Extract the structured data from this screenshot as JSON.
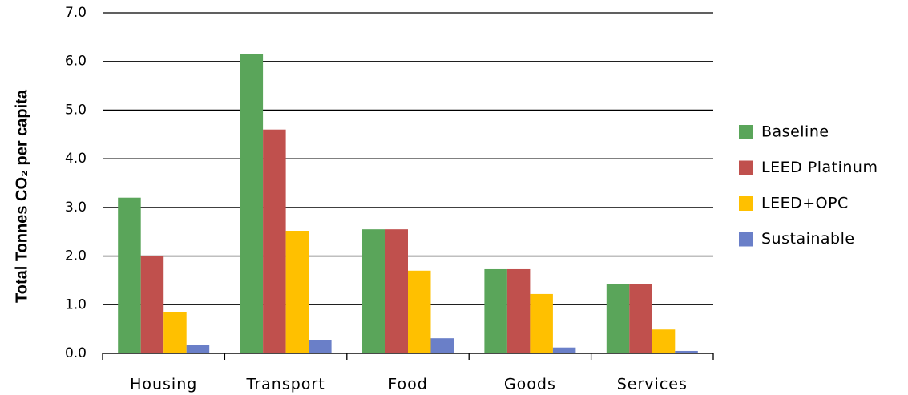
{
  "chart_data": {
    "type": "bar",
    "y_label": "Total Tonnes CO₂ per capita",
    "categories": [
      "Housing",
      "Transport",
      "Food",
      "Goods",
      "Services"
    ],
    "series": [
      {
        "name": "Baseline",
        "color": "#5aa55a",
        "values": [
          3.2,
          6.15,
          2.55,
          1.73,
          1.42
        ]
      },
      {
        "name": "LEED Platinum",
        "color": "#c0504d",
        "values": [
          2.0,
          4.6,
          2.55,
          1.73,
          1.42
        ]
      },
      {
        "name": "LEED+OPC",
        "color": "#ffc000",
        "values": [
          0.84,
          2.52,
          1.7,
          1.22,
          0.49
        ]
      },
      {
        "name": "Sustainable",
        "color": "#6a7fc8",
        "values": [
          0.18,
          0.28,
          0.31,
          0.12,
          0.05
        ]
      }
    ],
    "ylim": [
      0,
      7
    ],
    "yticks": [
      {
        "value": 0,
        "label": "0.0"
      },
      {
        "value": 1,
        "label": "1.0"
      },
      {
        "value": 2,
        "label": "2.0"
      },
      {
        "value": 3,
        "label": "3.0"
      },
      {
        "value": 4,
        "label": "4.0"
      },
      {
        "value": 5,
        "label": "5.0"
      },
      {
        "value": 6,
        "label": "6.0"
      },
      {
        "value": 7,
        "label": "7.0"
      }
    ],
    "grid": true,
    "legend": "right"
  }
}
